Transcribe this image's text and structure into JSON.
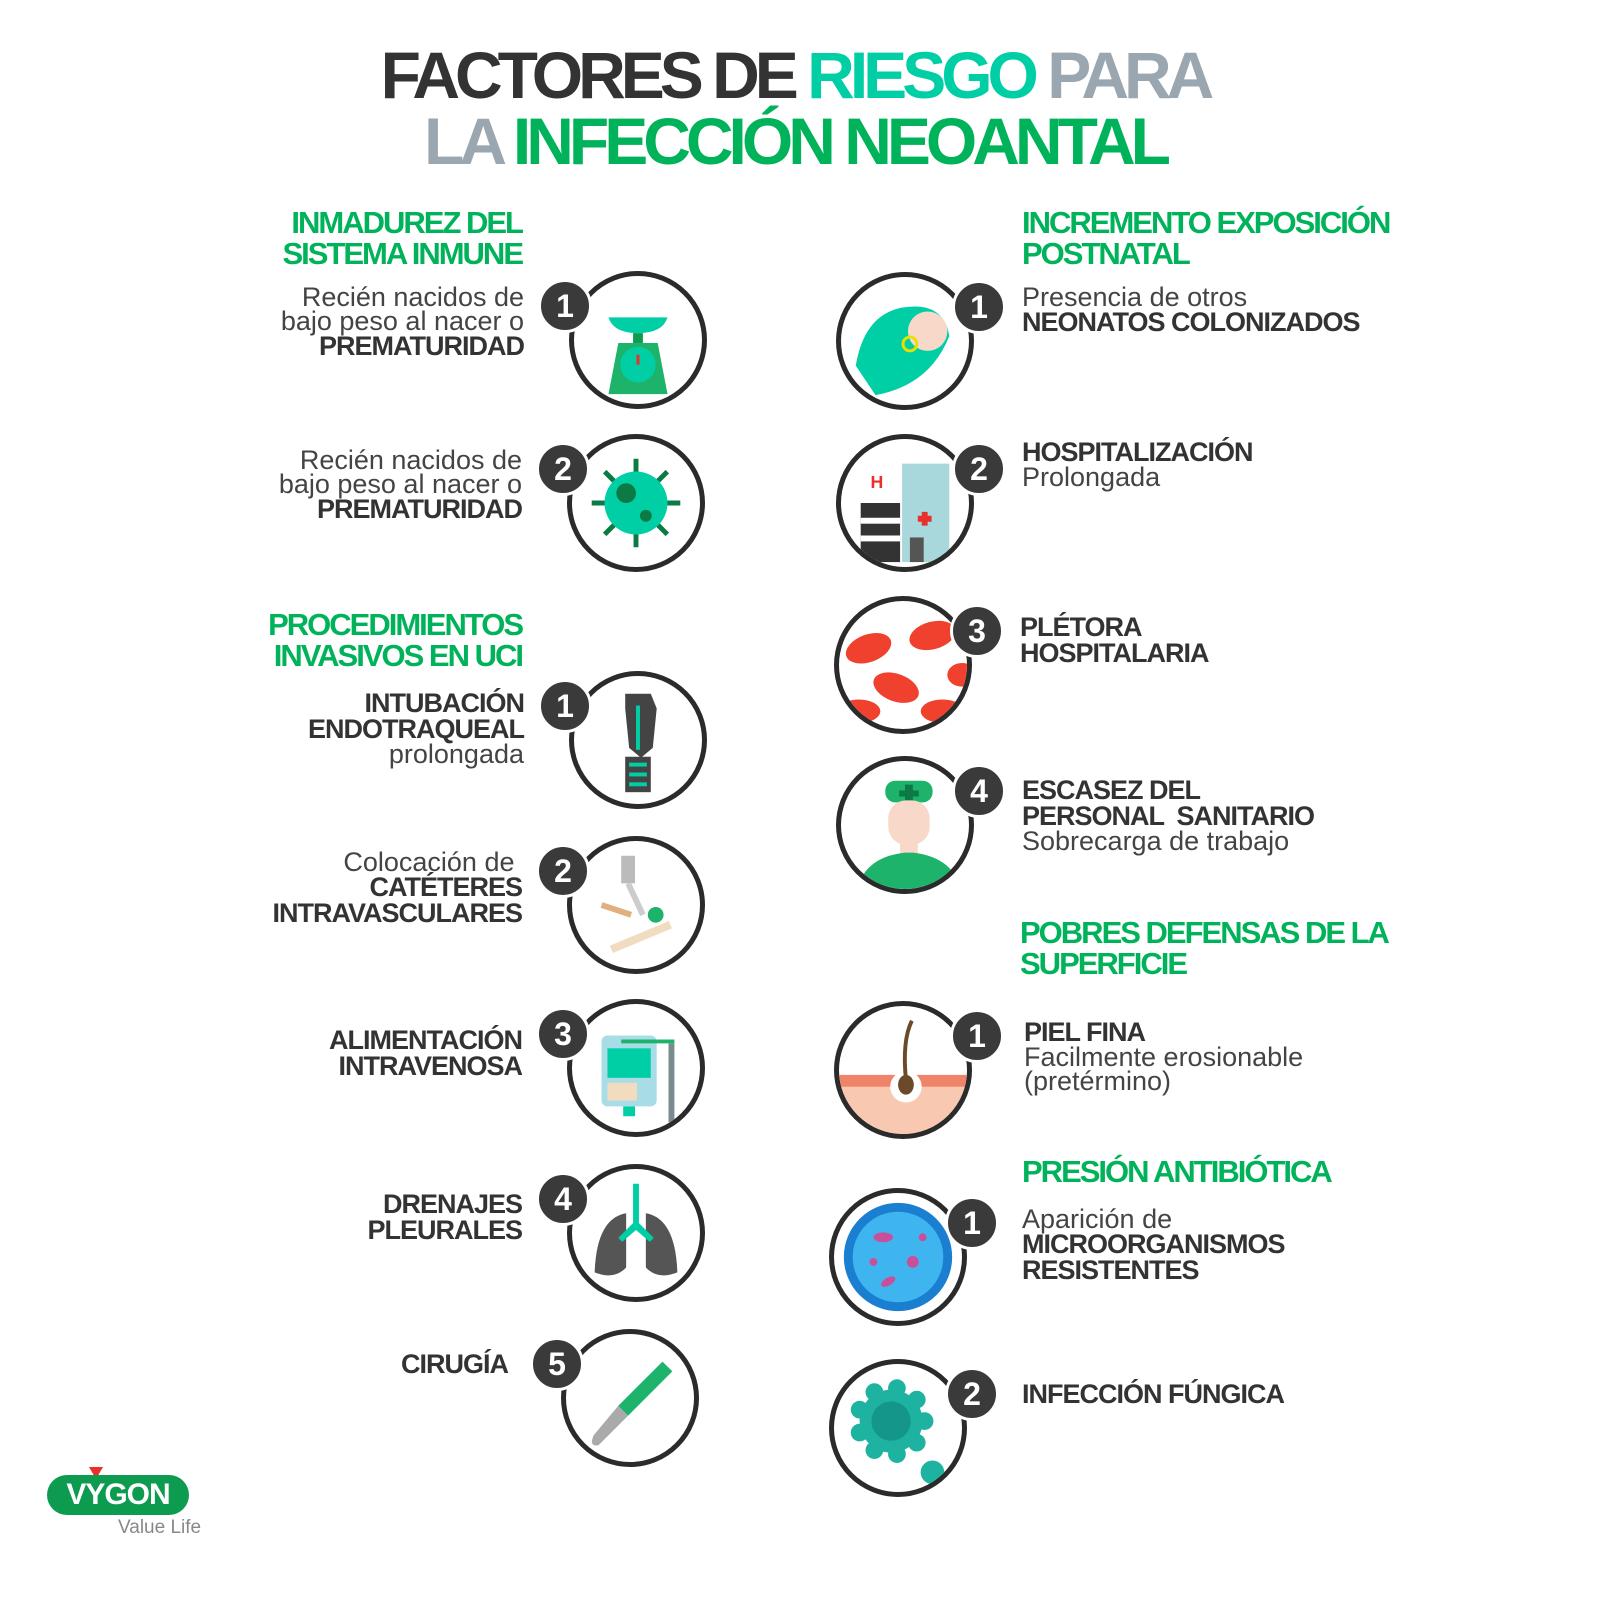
{
  "title": {
    "line1": [
      {
        "text": "FACTORES DE ",
        "color": "dark"
      },
      {
        "text": "RIESGO ",
        "color": "teal"
      },
      {
        "text": "PARA",
        "color": "gray"
      }
    ],
    "line2": [
      {
        "text": "LA ",
        "color": "gray"
      },
      {
        "text": "INFECCIÓN NEOANTAL",
        "color": "green"
      }
    ]
  },
  "colors": {
    "green": "#00b35a",
    "teal": "#00cfa6",
    "dark": "#333333",
    "gray": "#9aa7b0",
    "ring": "#2b2b2b",
    "logo": "#0c9b4f"
  },
  "left": [
    {
      "id": "h-inmadurez",
      "type": "heading",
      "lines": [
        "INMADUREZ DEL",
        "SISTEMA INMUNE"
      ]
    },
    {
      "id": "l1",
      "type": "item",
      "badge": "1",
      "icon": "scale-icon",
      "lines": [
        {
          "t": "Recién nacidos de",
          "s": "reg"
        },
        {
          "t": "bajo peso al nacer o",
          "s": "reg"
        },
        {
          "t": "PREMATURIDAD",
          "s": "bold"
        }
      ]
    },
    {
      "id": "l2",
      "type": "item",
      "badge": "2",
      "icon": "virus-icon",
      "lines": [
        {
          "t": "Recién nacidos de",
          "s": "reg"
        },
        {
          "t": "bajo peso al nacer o",
          "s": "reg"
        },
        {
          "t": "PREMATURIDAD",
          "s": "bold"
        }
      ]
    },
    {
      "id": "h-procedimientos",
      "type": "heading",
      "lines": [
        "PROCEDIMIENTOS",
        "INVASIVOS EN UCI"
      ]
    },
    {
      "id": "l3",
      "type": "item",
      "badge": "1",
      "icon": "endotracheal-tube-icon",
      "lines": [
        {
          "t": "INTUBACIÓN",
          "s": "bold"
        },
        {
          "t": "ENDOTRAQUEAL",
          "s": "bold"
        },
        {
          "t": "prolongada",
          "s": "reg"
        }
      ]
    },
    {
      "id": "l4",
      "type": "item",
      "badge": "2",
      "icon": "catheter-icon",
      "lines": [
        {
          "t": "Colocación de ",
          "s": "reg"
        },
        {
          "t": "CATÉTERES",
          "s": "bold"
        },
        {
          "t": "INTRAVASCULARES",
          "s": "bold"
        }
      ]
    },
    {
      "id": "l5",
      "type": "item",
      "badge": "3",
      "icon": "iv-bag-icon",
      "lines": [
        {
          "t": "ALIMENTACIÓN",
          "s": "bold"
        },
        {
          "t": "INTRAVENOSA",
          "s": "bold"
        }
      ]
    },
    {
      "id": "l6",
      "type": "item",
      "badge": "4",
      "icon": "lungs-icon",
      "lines": [
        {
          "t": "DRENAJES",
          "s": "bold"
        },
        {
          "t": "PLEURALES",
          "s": "bold"
        }
      ]
    },
    {
      "id": "l7",
      "type": "item",
      "badge": "5",
      "icon": "scalpel-icon",
      "lines": [
        {
          "t": "CIRUGÍA",
          "s": "bold"
        }
      ]
    }
  ],
  "right": [
    {
      "id": "h-incremento",
      "type": "heading",
      "lines": [
        "INCREMENTO EXPOSICIÓN",
        "POSTNATAL"
      ]
    },
    {
      "id": "r1",
      "type": "item",
      "badge": "1",
      "icon": "newborn-icon",
      "lines": [
        {
          "t": "Presencia de otros",
          "s": "reg"
        },
        {
          "t": "NEONATOS COLONIZADOS",
          "s": "bold"
        }
      ]
    },
    {
      "id": "r2",
      "type": "item",
      "badge": "2",
      "icon": "hospital-icon",
      "lines": [
        {
          "t": "HOSPITALIZACIÓN",
          "s": "bold"
        },
        {
          "t": "Prolongada",
          "s": "reg"
        }
      ]
    },
    {
      "id": "r3",
      "type": "item",
      "badge": "3",
      "icon": "red-blood-cells-icon",
      "lines": [
        {
          "t": "PLÉTORA",
          "s": "bold"
        },
        {
          "t": "HOSPITALARIA",
          "s": "bold"
        }
      ]
    },
    {
      "id": "r4",
      "type": "item",
      "badge": "4",
      "icon": "nurse-icon",
      "lines": [
        {
          "t": "ESCASEZ DEL",
          "s": "bold"
        },
        {
          "t": "PERSONAL  SANITARIO",
          "s": "bold"
        },
        {
          "t": "Sobrecarga de trabajo",
          "s": "reg"
        }
      ]
    },
    {
      "id": "h-pobres",
      "type": "heading",
      "lines": [
        "POBRES DEFENSAS DE LA",
        "SUPERFICIE"
      ]
    },
    {
      "id": "r5",
      "type": "item",
      "badge": "1",
      "icon": "skin-hair-icon",
      "lines": [
        {
          "t": "PIEL FINA",
          "s": "bold"
        },
        {
          "t": "Facilmente erosionable",
          "s": "reg"
        },
        {
          "t": "(pretérmino)",
          "s": "reg"
        }
      ]
    },
    {
      "id": "h-presion",
      "type": "heading",
      "lines": [
        "PRESIÓN ANTIBIÓTICA"
      ]
    },
    {
      "id": "r6",
      "type": "item",
      "badge": "1",
      "icon": "petri-dish-icon",
      "lines": [
        {
          "t": "Aparición de",
          "s": "reg"
        },
        {
          "t": "MICROORGANISMOS",
          "s": "bold"
        },
        {
          "t": "RESISTENTES",
          "s": "bold"
        }
      ]
    },
    {
      "id": "r7",
      "type": "item",
      "badge": "2",
      "icon": "fungus-icon",
      "lines": [
        {
          "t": "INFECCIÓN FÚNGICA",
          "s": "bold"
        }
      ]
    }
  ],
  "logo": {
    "brand": "VYGON",
    "tagline": "Value Life"
  }
}
